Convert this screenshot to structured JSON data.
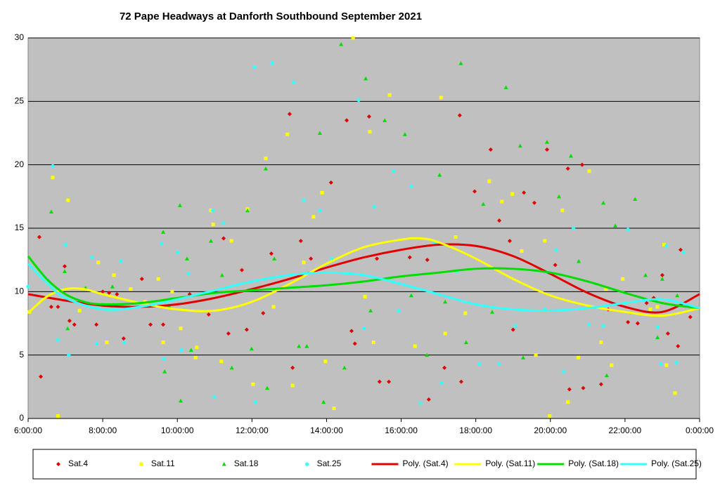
{
  "chart_data": {
    "type": "scatter",
    "title": "72 Pape Headways at Danforth Southbound September 2021",
    "xlim": [
      6,
      24
    ],
    "ylim": [
      0,
      30
    ],
    "xticks": [
      {
        "value": 6,
        "label": "6:00:00"
      },
      {
        "value": 8,
        "label": "8:00:00"
      },
      {
        "value": 10,
        "label": "10:00:00"
      },
      {
        "value": 12,
        "label": "12:00:00"
      },
      {
        "value": 14,
        "label": "14:00:00"
      },
      {
        "value": 16,
        "label": "16:00:00"
      },
      {
        "value": 18,
        "label": "18:00:00"
      },
      {
        "value": 20,
        "label": "20:00:00"
      },
      {
        "value": 22,
        "label": "22:00:00"
      },
      {
        "value": 24,
        "label": "0:00:00"
      }
    ],
    "yticks": [
      0,
      5,
      10,
      15,
      20,
      25,
      30
    ],
    "grid": true,
    "legend": "bottom",
    "series": [
      {
        "name": "Sat.4",
        "color": "#e00000",
        "marker": "diamond",
        "x": [
          6.3,
          6.34,
          6.62,
          6.8,
          6.98,
          7.11,
          7.24,
          7.83,
          8.0,
          8.17,
          8.38,
          8.56,
          9.05,
          9.28,
          9.62,
          10.33,
          10.84,
          11.24,
          11.37,
          11.73,
          11.86,
          12.3,
          12.52,
          13.01,
          13.09,
          13.31,
          13.58,
          14.12,
          14.54,
          14.67,
          14.76,
          15.14,
          15.35,
          15.42,
          15.67,
          16.23,
          16.7,
          16.74,
          17.16,
          17.57,
          17.61,
          17.97,
          18.4,
          18.63,
          18.91,
          19.0,
          19.29,
          19.57,
          19.91,
          20.13,
          20.47,
          20.51,
          20.85,
          20.88,
          21.36,
          21.55,
          22.08,
          22.34,
          22.58,
          22.77,
          23.0,
          23.15,
          23.42,
          23.49,
          23.75
        ],
        "values": [
          14.3,
          3.3,
          8.8,
          8.8,
          12.0,
          7.7,
          7.4,
          7.4,
          10.0,
          9.9,
          9.8,
          6.3,
          11.0,
          7.4,
          7.4,
          9.8,
          8.2,
          14.2,
          6.7,
          11.7,
          7.0,
          8.3,
          13.0,
          24.0,
          4.0,
          14.0,
          12.6,
          18.6,
          23.5,
          6.9,
          5.9,
          23.8,
          12.6,
          2.9,
          2.9,
          12.7,
          12.5,
          1.5,
          4.0,
          23.9,
          2.9,
          17.9,
          21.2,
          15.6,
          14.0,
          7.0,
          17.8,
          17.0,
          21.2,
          12.1,
          19.7,
          2.3,
          20.0,
          2.4,
          2.7,
          8.6,
          7.6,
          7.5,
          9.1,
          9.5,
          11.3,
          6.7,
          5.7,
          13.3,
          8.0
        ]
      },
      {
        "name": "Sat.11",
        "color": "#ffff00",
        "marker": "square",
        "x": [
          6.04,
          6.66,
          6.8,
          7.07,
          7.38,
          7.88,
          8.11,
          8.3,
          8.75,
          9.13,
          9.49,
          9.62,
          9.86,
          10.09,
          10.49,
          10.52,
          10.9,
          10.96,
          11.18,
          11.45,
          11.88,
          12.03,
          12.37,
          12.58,
          12.95,
          13.09,
          13.39,
          13.65,
          13.88,
          13.97,
          14.2,
          14.71,
          15.03,
          15.16,
          15.26,
          15.69,
          16.37,
          17.07,
          17.18,
          17.46,
          17.72,
          18.36,
          18.7,
          18.98,
          19.23,
          19.61,
          19.85,
          19.98,
          20.32,
          20.47,
          20.75,
          21.04,
          21.36,
          21.49,
          21.64,
          21.94,
          22.68,
          22.87,
          23.05,
          23.11,
          23.34
        ],
        "values": [
          8.4,
          19.0,
          0.2,
          17.2,
          8.5,
          12.3,
          6.0,
          11.3,
          10.2,
          9.2,
          11.0,
          6.0,
          10.0,
          7.1,
          4.8,
          5.6,
          16.4,
          15.3,
          4.5,
          14.0,
          16.5,
          2.7,
          20.5,
          8.8,
          22.4,
          2.6,
          12.3,
          15.9,
          17.8,
          4.5,
          0.8,
          30.0,
          9.6,
          22.6,
          6.0,
          25.5,
          5.7,
          25.3,
          6.7,
          14.3,
          8.3,
          18.7,
          17.1,
          17.7,
          13.2,
          5.0,
          14.0,
          0.2,
          16.4,
          1.3,
          4.8,
          19.5,
          6.0,
          10.2,
          4.2,
          11.0,
          8.6,
          8.8,
          13.7,
          4.2,
          2.0
        ]
      },
      {
        "name": "Sat.18",
        "color": "#00dd00",
        "marker": "triangle",
        "x": [
          6.62,
          6.98,
          7.06,
          7.54,
          8.26,
          9.62,
          9.66,
          9.77,
          10.07,
          10.09,
          10.26,
          10.37,
          10.9,
          11.2,
          11.46,
          11.88,
          11.99,
          12.37,
          12.41,
          12.6,
          13.26,
          13.47,
          13.82,
          13.92,
          14.39,
          14.48,
          15.05,
          15.18,
          15.56,
          16.1,
          16.27,
          16.69,
          17.03,
          17.18,
          17.6,
          17.74,
          18.2,
          18.44,
          18.81,
          19.19,
          19.27,
          19.91,
          20.23,
          20.55,
          20.76,
          21.42,
          21.51,
          21.74,
          22.27,
          22.55,
          22.87,
          23.0,
          23.4
        ],
        "values": [
          16.3,
          11.6,
          7.1,
          10.3,
          10.4,
          14.7,
          3.7,
          8.9,
          16.8,
          1.4,
          12.6,
          5.4,
          14.0,
          11.3,
          4.0,
          16.4,
          5.5,
          19.7,
          2.4,
          12.6,
          5.7,
          5.7,
          22.5,
          1.3,
          29.5,
          4.0,
          26.8,
          8.5,
          23.5,
          22.4,
          9.7,
          5.0,
          19.2,
          9.2,
          28.0,
          6.0,
          16.9,
          8.4,
          26.1,
          21.5,
          4.8,
          21.8,
          17.5,
          20.7,
          12.4,
          17.0,
          3.4,
          15.2,
          17.3,
          11.3,
          6.4,
          11.0,
          9.7
        ]
      },
      {
        "name": "Sat.25",
        "color": "#33ffff",
        "marker": "circle",
        "x": [
          6.0,
          6.66,
          6.8,
          7.0,
          7.09,
          7.71,
          7.84,
          8.49,
          8.58,
          9.58,
          9.64,
          10.01,
          10.11,
          10.3,
          10.95,
          10.99,
          11.24,
          12.07,
          12.09,
          12.54,
          13.12,
          13.39,
          13.82,
          14.14,
          14.86,
          15.01,
          15.28,
          15.8,
          15.93,
          16.27,
          16.52,
          16.89,
          17.08,
          17.5,
          18.1,
          18.63,
          19.06,
          19.85,
          20.15,
          20.36,
          20.62,
          21.04,
          21.42,
          22.08,
          22.87,
          22.96,
          23.11,
          23.38,
          23.57
        ],
        "values": [
          10.4,
          19.9,
          6.2,
          13.7,
          5.0,
          12.7,
          5.9,
          12.4,
          6.0,
          13.8,
          4.7,
          13.1,
          5.4,
          11.4,
          16.4,
          1.7,
          15.4,
          27.7,
          1.3,
          28.0,
          26.5,
          17.2,
          16.4,
          12.6,
          25.1,
          7.1,
          16.7,
          19.5,
          8.5,
          18.3,
          1.2,
          13.8,
          2.8,
          11.6,
          4.3,
          4.3,
          7.3,
          8.6,
          13.3,
          3.7,
          15.0,
          7.4,
          7.3,
          14.9,
          7.2,
          4.3,
          13.6,
          4.4,
          13.1
        ]
      },
      {
        "name": "Poly. (Sat.4)",
        "color": "#e00000",
        "marker": "line",
        "x": [
          6,
          7,
          8,
          9,
          10,
          11,
          12,
          13,
          14,
          15,
          16,
          17,
          18,
          19,
          20,
          21,
          22,
          23,
          24
        ],
        "values": [
          9.8,
          9.3,
          8.9,
          8.8,
          9.0,
          9.5,
          10.2,
          11.0,
          11.9,
          12.7,
          13.3,
          13.7,
          13.6,
          12.8,
          11.4,
          9.9,
          8.8,
          8.4,
          9.8
        ]
      },
      {
        "name": "Poly. (Sat.11)",
        "color": "#ffff00",
        "marker": "line",
        "x": [
          6,
          6.5,
          7,
          7.5,
          8,
          9,
          10,
          11,
          12,
          13,
          14,
          15,
          16,
          16.5,
          17,
          18,
          19,
          20,
          21,
          22,
          23,
          24
        ],
        "values": [
          8.3,
          9.6,
          10.2,
          10.2,
          9.8,
          9.1,
          8.6,
          8.5,
          9.2,
          10.6,
          12.2,
          13.5,
          14.1,
          14.2,
          13.9,
          12.6,
          11.0,
          9.7,
          8.9,
          8.4,
          8.1,
          8.7
        ]
      },
      {
        "name": "Poly. (Sat.18)",
        "color": "#00dd00",
        "marker": "line",
        "x": [
          6,
          6.5,
          7,
          7.5,
          8,
          9,
          10,
          11,
          12,
          13,
          14,
          15,
          16,
          17,
          18,
          19,
          20,
          21,
          22,
          23,
          24
        ],
        "values": [
          12.8,
          11.0,
          9.8,
          9.2,
          9.0,
          9.1,
          9.5,
          9.9,
          10.1,
          10.3,
          10.5,
          10.8,
          11.2,
          11.5,
          11.8,
          11.8,
          11.5,
          10.8,
          9.9,
          9.1,
          8.7
        ]
      },
      {
        "name": "Poly. (Sat.25)",
        "color": "#33ffff",
        "marker": "line",
        "x": [
          6,
          6.5,
          7,
          8,
          9,
          10,
          11,
          12,
          13,
          14,
          15,
          16,
          17,
          18,
          19,
          20,
          21,
          22,
          23,
          24
        ],
        "values": [
          12.2,
          10.7,
          9.5,
          8.6,
          8.8,
          9.4,
          10.1,
          10.8,
          11.3,
          11.5,
          11.3,
          10.6,
          9.8,
          9.0,
          8.6,
          8.5,
          8.7,
          9.1,
          9.4,
          8.7
        ]
      }
    ]
  }
}
